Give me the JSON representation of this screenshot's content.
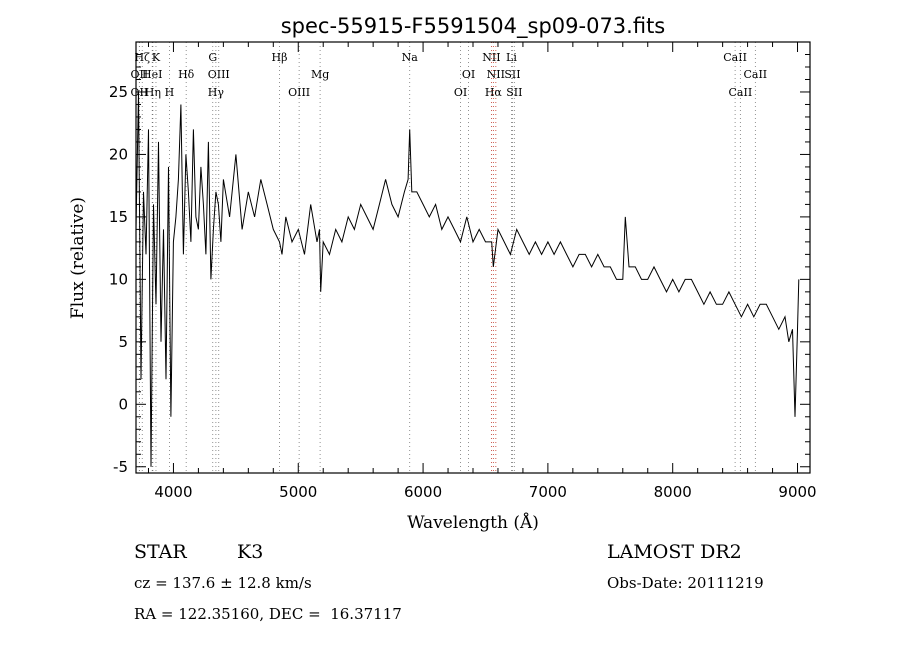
{
  "chart_data": {
    "type": "line",
    "title": "spec-55915-F5591504_sp09-073.fits",
    "xlabel": "Wavelength (Å)",
    "ylabel": "Flux (relative)",
    "xlim": [
      3700,
      9100
    ],
    "ylim": [
      -5.5,
      29
    ],
    "xticks": [
      4000,
      5000,
      6000,
      7000,
      8000,
      9000
    ],
    "yticks": [
      -5,
      0,
      5,
      10,
      15,
      20,
      25
    ],
    "grid": false,
    "series": [
      {
        "x": [
          3700,
          3720,
          3740,
          3760,
          3780,
          3800,
          3820,
          3840,
          3860,
          3880,
          3900,
          3920,
          3940,
          3960,
          3980,
          4000,
          4020,
          4040,
          4060,
          4080,
          4100,
          4120,
          4140,
          4160,
          4180,
          4200,
          4220,
          4240,
          4260,
          4280,
          4300,
          4320,
          4340,
          4360,
          4380,
          4400,
          4450,
          4500,
          4550,
          4600,
          4650,
          4700,
          4750,
          4800,
          4850,
          4870,
          4900,
          4950,
          5000,
          5050,
          5100,
          5150,
          5170,
          5180,
          5200,
          5250,
          5300,
          5350,
          5400,
          5450,
          5500,
          5550,
          5600,
          5650,
          5700,
          5750,
          5800,
          5850,
          5880,
          5893,
          5910,
          5950,
          6000,
          6050,
          6100,
          6150,
          6200,
          6250,
          6300,
          6350,
          6400,
          6450,
          6500,
          6550,
          6563,
          6600,
          6650,
          6700,
          6750,
          6800,
          6850,
          6900,
          6950,
          7000,
          7050,
          7100,
          7150,
          7200,
          7250,
          7300,
          7350,
          7400,
          7450,
          7500,
          7550,
          7600,
          7620,
          7650,
          7700,
          7750,
          7800,
          7850,
          7900,
          7950,
          8000,
          8050,
          8100,
          8150,
          8200,
          8250,
          8300,
          8350,
          8400,
          8450,
          8500,
          8550,
          8600,
          8650,
          8700,
          8750,
          8800,
          8850,
          8900,
          8930,
          8960,
          8980,
          9000,
          9010
        ],
        "y": [
          14,
          25,
          2,
          17,
          12,
          22,
          -5,
          16,
          8,
          21,
          5,
          14,
          2,
          19,
          -1,
          13,
          15,
          18,
          24,
          12,
          20,
          17,
          13,
          22,
          15,
          14,
          19,
          16,
          12,
          21,
          10,
          14,
          17,
          16,
          13,
          18,
          15,
          20,
          14,
          17,
          15,
          18,
          16,
          14,
          13,
          12,
          15,
          13,
          14,
          12,
          16,
          13,
          14,
          9,
          13,
          12,
          14,
          13,
          15,
          14,
          16,
          15,
          14,
          16,
          18,
          16,
          15,
          17,
          18,
          22,
          17,
          17,
          16,
          15,
          16,
          14,
          15,
          14,
          13,
          15,
          13,
          14,
          13,
          13,
          11,
          14,
          13,
          12,
          14,
          13,
          12,
          13,
          12,
          13,
          12,
          13,
          12,
          11,
          12,
          12,
          11,
          12,
          11,
          11,
          10,
          10,
          15,
          11,
          11,
          10,
          10,
          11,
          10,
          9,
          10,
          9,
          10,
          10,
          9,
          8,
          9,
          8,
          8,
          9,
          8,
          7,
          8,
          7,
          8,
          8,
          7,
          6,
          7,
          5,
          6,
          -1,
          6,
          10
        ]
      }
    ],
    "spectral_lines": [
      {
        "label": "Hζ",
        "x": 3750,
        "row": 1
      },
      {
        "label": "K",
        "x": 3860,
        "row": 1
      },
      {
        "label": "G",
        "x": 4315,
        "row": 1
      },
      {
        "label": "Hβ",
        "x": 4850,
        "row": 1
      },
      {
        "label": "Na",
        "x": 5893,
        "row": 1
      },
      {
        "label": "NII",
        "x": 6548,
        "row": 1
      },
      {
        "label": "Li",
        "x": 6708,
        "row": 1
      },
      {
        "label": "CaII",
        "x": 8500,
        "row": 1
      },
      {
        "label": "OII",
        "x": 3727,
        "row": 2
      },
      {
        "label": "HeI",
        "x": 3830,
        "row": 2
      },
      {
        "label": "Hδ",
        "x": 4102,
        "row": 2
      },
      {
        "label": "OIII",
        "x": 4363,
        "row": 2
      },
      {
        "label": "Mg",
        "x": 5175,
        "row": 2
      },
      {
        "label": "OI",
        "x": 6364,
        "row": 2
      },
      {
        "label": "NII",
        "x": 6583,
        "row": 2
      },
      {
        "label": "SII",
        "x": 6716,
        "row": 2
      },
      {
        "label": "CaII",
        "x": 8662,
        "row": 2
      },
      {
        "label": "OII",
        "x": 3727,
        "row": 3
      },
      {
        "label": "Hη",
        "x": 3835,
        "row": 3
      },
      {
        "label": "H",
        "x": 3968,
        "row": 3
      },
      {
        "label": "Hγ",
        "x": 4340,
        "row": 3
      },
      {
        "label": "OIII",
        "x": 5007,
        "row": 3
      },
      {
        "label": "OI",
        "x": 6300,
        "row": 3
      },
      {
        "label": "Hα",
        "x": 6563,
        "row": 3
      },
      {
        "label": "SII",
        "x": 6731,
        "row": 3
      },
      {
        "label": "CaII",
        "x": 8542,
        "row": 3
      }
    ]
  },
  "info": {
    "class": "STAR",
    "subclass": "K3",
    "survey": "LAMOST DR2",
    "cz": "cz = 137.6 ± 12.8 km/s",
    "obs_date": "Obs-Date: 20111219",
    "radec": "RA = 122.35160, DEC =  16.37117"
  }
}
